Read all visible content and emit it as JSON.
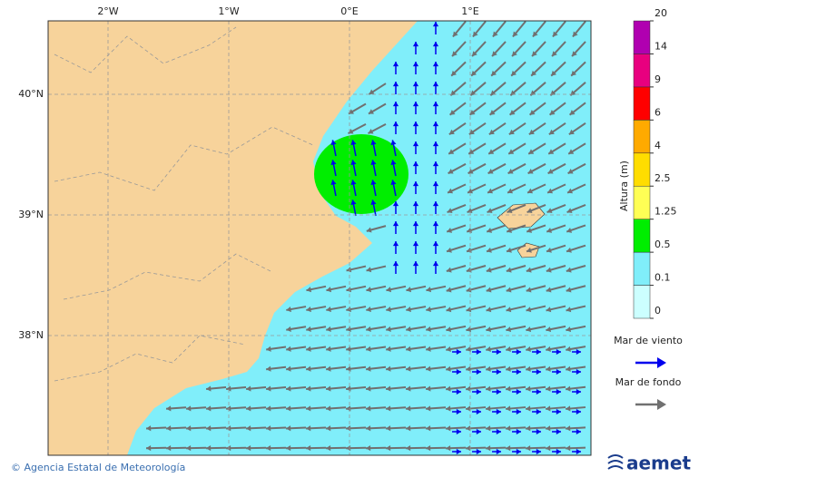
{
  "map": {
    "lon_ticks": [
      {
        "value": -2,
        "label": "2°W"
      },
      {
        "value": -1,
        "label": "1°W"
      },
      {
        "value": 0,
        "label": "0°E"
      },
      {
        "value": 1,
        "label": "1°E"
      }
    ],
    "lat_ticks": [
      {
        "value": 40,
        "label": "40°N"
      },
      {
        "value": 39,
        "label": "39°N"
      },
      {
        "value": 38,
        "label": "38°N"
      }
    ]
  },
  "colorbar": {
    "title": "Altura (m)",
    "ticks": [
      0,
      0.1,
      0.5,
      1.25,
      2.5,
      4,
      6,
      9,
      14,
      20
    ],
    "colors": [
      "#ccffff",
      "#80eefa",
      "#00ee00",
      "#ffff55",
      "#ffdd00",
      "#ffaa00",
      "#ff0000",
      "#e8007f",
      "#b000b0"
    ]
  },
  "legend": {
    "items": [
      {
        "label": "Mar de viento",
        "color": "#0000ee"
      },
      {
        "label": "Mar de fondo",
        "color": "#707070"
      }
    ]
  },
  "footer": {
    "credit": "© Agencia Estatal de Meteorología",
    "logo": "aemet"
  }
}
